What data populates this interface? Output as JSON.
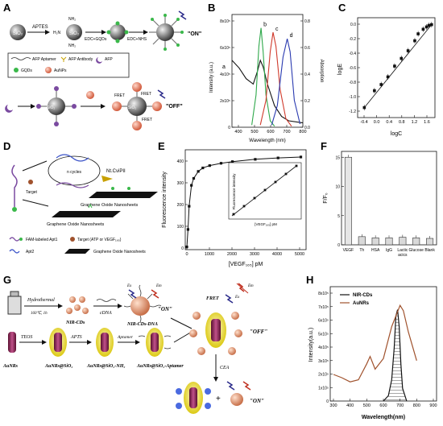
{
  "panels": {
    "A": {
      "letter": "A",
      "sio2": "SiO₂",
      "aptes": "APTES",
      "nh2": "NH₂",
      "h2n": "H₂N",
      "edc_gqds": "EDC+GQDs",
      "edc_nhs": "EDC+NHS",
      "on": "\"ON\"",
      "off": "\"OFF\"",
      "fret": "FRET",
      "legend_aptamer": "AFP Aptamer",
      "legend_antibody": "AFP Antibody",
      "legend_afp": "AFP",
      "legend_gqds": "GQDs",
      "legend_aunps": "AuNPs"
    },
    "B": {
      "letter": "B",
      "ylabel_left": "Intensity (a.u.)",
      "ylabel_right": "Absorption",
      "xlabel": "Wavelength (nm)",
      "xticks": [
        "400",
        "500",
        "600",
        "700",
        "800"
      ],
      "yticks_left": [
        "0",
        "2x10⁵",
        "4x10⁵",
        "6x10⁵",
        "8x10⁵"
      ],
      "yticks_right": [
        "0.0",
        "0.2",
        "0.4",
        "0.6",
        "0.8"
      ],
      "curve_labels": [
        "a",
        "b",
        "c",
        "d"
      ]
    },
    "C": {
      "letter": "C",
      "xlabel": "logC",
      "ylabel": "logE",
      "xticks": [
        "-0.4",
        "0.0",
        "0.4",
        "0.8",
        "1.2",
        "1.6"
      ],
      "yticks": [
        "0.0",
        "-0.2",
        "-0.4",
        "-0.6",
        "-0.8",
        "-1.0",
        "-1.2"
      ]
    },
    "D": {
      "letter": "D",
      "ncycles": "n cycles",
      "enzyme": "Nt.CviPII",
      "target": "Target",
      "go1": "Graphene Oxide Nanosheets",
      "go2": "Graphene Oxide Nanosheets",
      "leg_fam": "FAM-labeled Apt1",
      "leg_target": "Target (ATP or VEGF₁₆₅)",
      "leg_apt2": "Apt2",
      "leg_go": "Graphene Oxide Nanosheets"
    },
    "E": {
      "letter": "E",
      "ylabel": "Fluorescence intensity",
      "xlabel": "[VEGF₁₆₅] pM",
      "xticks": [
        "0",
        "1000",
        "2000",
        "3000",
        "4000",
        "5000"
      ],
      "yticks": [
        "0",
        "100",
        "200",
        "300",
        "400"
      ],
      "inset_ylabel": "Fluorescence intensity",
      "inset_xlabel": "[VEGF₁₆₅] pM"
    },
    "F": {
      "letter": "F",
      "ylabel": "F/F₀",
      "yticks": [
        "0",
        "5",
        "10",
        "15"
      ],
      "categories": [
        "VEGF",
        "Th",
        "HSA",
        "IgG",
        "Lactic acics",
        "Glucose",
        "Blank"
      ]
    },
    "G": {
      "letter": "G",
      "hydrothermal": "Hydrothermal",
      "hydro_cond": "160℃, 1h",
      "nircds": "NIR-CDs",
      "cdna": "cDNA",
      "nircds_dna": "NIR-CDs-DNA",
      "on1": "\"ON\"",
      "off": "\"OFF\"",
      "on2": "\"ON\"",
      "fret": "FRET",
      "ex": "Ex",
      "em": "Em",
      "cea": "CEA",
      "teos": "TEOS",
      "apts": "APTS",
      "aptamer": "Aptamer",
      "aunrs": "AuNRs",
      "aunrs_sio2": "AuNRs@SiO₂",
      "aunrs_sio2_nh2": "AuNRs@SiO₂-NH₂",
      "aunrs_sio2_apt": "AuNRs@SiO₂-Aptamer"
    },
    "H": {
      "letter": "H",
      "legend_1": "NIR-CDs",
      "legend_2": "AuNRs",
      "ylabel": "Intensity(a.u.)",
      "xlabel": "Wavelength(nm)",
      "xticks": [
        "300",
        "400",
        "500",
        "600",
        "700",
        "800",
        "900"
      ],
      "yticks": [
        "0",
        "1x10⁵",
        "2x10⁵",
        "3x10⁵",
        "4x10⁵",
        "5x10⁵",
        "6x10⁵",
        "7x10⁵",
        "8x10⁵"
      ]
    }
  },
  "chart_data": [
    {
      "panel": "B",
      "type": "line",
      "xlabel": "Wavelength (nm)",
      "ylabel": "Intensity (a.u.)",
      "xlim": [
        300,
        800
      ],
      "series": [
        {
          "name": "a",
          "x": [
            300,
            350,
            400,
            450,
            480,
            500,
            520,
            550,
            600,
            650,
            700,
            800
          ],
          "y": [
            0.62,
            0.55,
            0.45,
            0.4,
            0.52,
            0.62,
            0.56,
            0.4,
            0.2,
            0.1,
            0.06,
            0.04
          ]
        },
        {
          "name": "b",
          "x": [
            440,
            470,
            490,
            505,
            520,
            540,
            570,
            600
          ],
          "y": [
            0.02,
            0.3,
            0.75,
            0.92,
            0.7,
            0.3,
            0.06,
            0.01
          ]
        },
        {
          "name": "c",
          "x": [
            500,
            540,
            570,
            590,
            610,
            640,
            680,
            720
          ],
          "y": [
            0.02,
            0.25,
            0.7,
            0.88,
            0.75,
            0.35,
            0.08,
            0.01
          ]
        },
        {
          "name": "d",
          "x": [
            580,
            620,
            660,
            690,
            710,
            740,
            780
          ],
          "y": [
            0.02,
            0.2,
            0.65,
            0.82,
            0.7,
            0.25,
            0.03
          ]
        }
      ]
    },
    {
      "panel": "C",
      "type": "scatter",
      "xlabel": "logC",
      "ylabel": "logE",
      "xlim": [
        -0.5,
        1.8
      ],
      "ylim": [
        -1.25,
        0.05
      ],
      "series": [
        {
          "x": [
            -0.3,
            0.0,
            0.2,
            0.4,
            0.6,
            0.8,
            1.0,
            1.2,
            1.3,
            1.45,
            1.55,
            1.62,
            1.7
          ],
          "y": [
            -1.12,
            -0.9,
            -0.82,
            -0.72,
            -0.58,
            -0.48,
            -0.38,
            -0.25,
            -0.16,
            -0.1,
            -0.07,
            -0.05,
            -0.04
          ]
        }
      ]
    },
    {
      "panel": "E",
      "type": "line",
      "xlabel": "[VEGF165] pM",
      "ylabel": "Fluorescence intensity",
      "xlim": [
        0,
        5300
      ],
      "ylim": [
        0,
        430
      ],
      "series": [
        {
          "x": [
            0,
            50,
            100,
            200,
            300,
            500,
            700,
            1000,
            1500,
            2000,
            3000,
            4000,
            5000
          ],
          "y": [
            5,
            80,
            180,
            270,
            300,
            330,
            345,
            355,
            365,
            372,
            382,
            388,
            392
          ]
        }
      ]
    },
    {
      "panel": "F",
      "type": "bar",
      "ylabel": "F/F0",
      "ylim": [
        0,
        16
      ],
      "categories": [
        "VEGF",
        "Th",
        "HSA",
        "IgG",
        "Lactic acics",
        "Glucose",
        "Blank"
      ],
      "values": [
        15.0,
        1.4,
        1.2,
        1.2,
        1.3,
        1.2,
        1.1
      ]
    },
    {
      "panel": "H",
      "type": "line",
      "xlabel": "Wavelength(nm)",
      "ylabel": "Intensity(a.u.)",
      "xlim": [
        300,
        900
      ],
      "series": [
        {
          "name": "NIR-CDs",
          "x": [
            600,
            630,
            650,
            665,
            675,
            685,
            695,
            705,
            715,
            740
          ],
          "y": [
            0.0,
            0.05,
            0.2,
            0.5,
            0.8,
            0.86,
            0.7,
            0.35,
            0.12,
            0.0
          ]
        },
        {
          "name": "AuNRs",
          "x": [
            300,
            350,
            400,
            450,
            500,
            520,
            550,
            600,
            650,
            700,
            720,
            750,
            800
          ],
          "y": [
            0.25,
            0.22,
            0.18,
            0.2,
            0.35,
            0.42,
            0.3,
            0.4,
            0.7,
            0.9,
            0.85,
            0.65,
            0.38
          ]
        }
      ]
    }
  ]
}
